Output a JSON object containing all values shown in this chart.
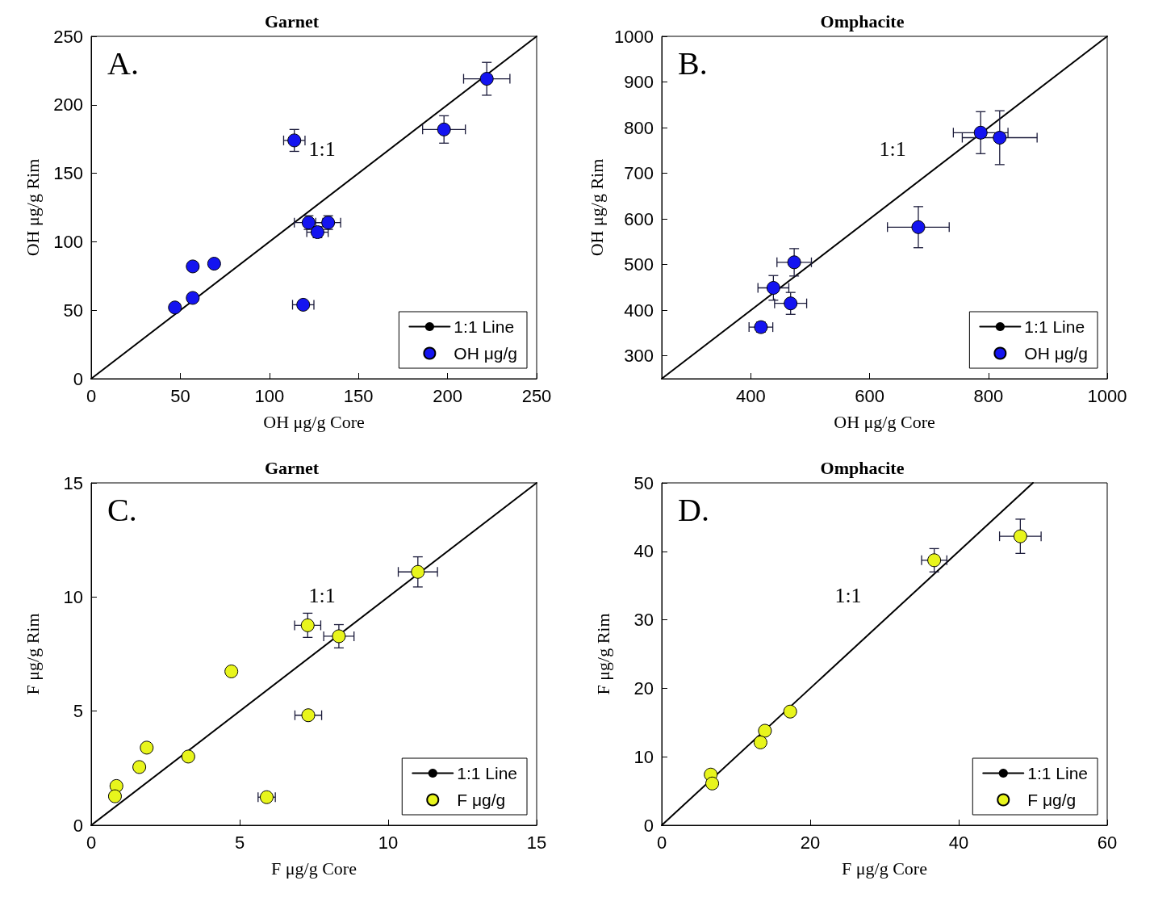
{
  "chart_data": [
    {
      "type": "scatter",
      "title": "Garnet",
      "xlabel": "OH μg/g Core",
      "ylabel": "OH μg/g Rim",
      "xlim": [
        0,
        250
      ],
      "ylim": [
        0,
        250
      ],
      "xticks": [
        0,
        50,
        100,
        150,
        200,
        250
      ],
      "yticks": [
        0,
        50,
        100,
        150,
        200,
        250
      ],
      "grid": false,
      "legend": "bottom right",
      "marker": "circle",
      "annotations": [
        "A.",
        "1:1"
      ],
      "series": [
        {
          "name": "1:1 Line",
          "type": "line",
          "color": "#000000",
          "marker": "none",
          "x": [
            0,
            250
          ],
          "values": [
            0,
            250
          ]
        },
        {
          "name": "OH μg/g",
          "color": "#1414f0",
          "x": [
            222,
            198,
            114,
            122,
            133,
            127,
            57,
            69,
            57,
            47,
            119
          ],
          "values": [
            219,
            182,
            174,
            114,
            114,
            107,
            82,
            84,
            59,
            52,
            54
          ],
          "xerrors": [
            13,
            12,
            6,
            8,
            7,
            6,
            null,
            null,
            null,
            null,
            6
          ],
          "errors": [
            12,
            10,
            8,
            5,
            5,
            4,
            null,
            null,
            null,
            null,
            null
          ]
        }
      ]
    },
    {
      "type": "scatter",
      "title": "Omphacite",
      "xlabel": "OH μg/g Core",
      "ylabel": "OH μg/g Rim",
      "xlim": [
        250,
        1000
      ],
      "ylim": [
        250,
        1000
      ],
      "xticks": [
        400,
        600,
        800,
        1000
      ],
      "yticks": [
        300,
        400,
        500,
        600,
        700,
        800,
        900,
        1000
      ],
      "grid": false,
      "legend": "bottom right",
      "marker": "circle",
      "annotations": [
        "B.",
        "1:1"
      ],
      "series": [
        {
          "name": "1:1 Line",
          "type": "line",
          "color": "#000000",
          "marker": "none",
          "x": [
            250,
            1000
          ],
          "values": [
            250,
            1000
          ]
        },
        {
          "name": "OH μg/g",
          "color": "#1414f0",
          "x": [
            787,
            819,
            682,
            473,
            438,
            467,
            417
          ],
          "values": [
            789,
            778,
            582,
            505,
            449,
            415,
            363
          ],
          "xerrors": [
            46,
            63,
            52,
            29,
            26,
            27,
            20
          ],
          "errors": [
            46,
            59,
            45,
            30,
            27,
            24,
            11
          ]
        }
      ]
    },
    {
      "type": "scatter",
      "title": "Garnet",
      "xlabel": "F μg/g Core",
      "ylabel": "F μg/g Rim",
      "xlim": [
        0,
        15
      ],
      "ylim": [
        0,
        15
      ],
      "xticks": [
        0,
        5,
        10,
        15
      ],
      "yticks": [
        0,
        5,
        10,
        15
      ],
      "grid": false,
      "legend": "bottom right",
      "marker": "circle",
      "annotations": [
        "C.",
        "1:1"
      ],
      "series": [
        {
          "name": "1:1 Line",
          "type": "line",
          "color": "#000000",
          "marker": "none",
          "x": [
            0,
            15
          ],
          "values": [
            0,
            15
          ]
        },
        {
          "name": "F μg/g",
          "color": "#e8f51c",
          "x": [
            11.0,
            7.29,
            8.34,
            4.72,
            7.31,
            3.27,
            1.87,
            1.62,
            0.85,
            0.8,
            5.91
          ],
          "values": [
            11.1,
            8.76,
            8.28,
            6.74,
            4.82,
            3.01,
            3.4,
            2.55,
            1.72,
            1.27,
            1.23
          ],
          "xerrors": [
            0.66,
            0.44,
            0.51,
            null,
            0.45,
            null,
            null,
            null,
            null,
            null,
            0.29
          ],
          "errors": [
            0.66,
            0.53,
            0.51,
            null,
            null,
            null,
            null,
            null,
            null,
            null,
            null
          ]
        }
      ]
    },
    {
      "type": "scatter",
      "title": "Omphacite",
      "xlabel": "F μg/g Core",
      "ylabel": "F μg/g Rim",
      "xlim": [
        0,
        60
      ],
      "ylim": [
        0,
        50
      ],
      "xticks": [
        0,
        20,
        40,
        60
      ],
      "yticks": [
        0,
        10,
        20,
        30,
        40,
        50
      ],
      "grid": false,
      "legend": "bottom right",
      "marker": "circle",
      "annotations": [
        "D.",
        "1:1"
      ],
      "series": [
        {
          "name": "1:1 Line",
          "type": "line",
          "color": "#000000",
          "marker": "none",
          "x": [
            0,
            50
          ],
          "values": [
            0,
            50
          ]
        },
        {
          "name": "F μg/g",
          "color": "#e8f51c",
          "x": [
            48.3,
            36.7,
            17.3,
            13.9,
            13.3,
            6.6,
            6.8
          ],
          "values": [
            42.2,
            38.7,
            16.6,
            13.8,
            12.1,
            7.4,
            6.1
          ],
          "xerrors": [
            2.8,
            1.7,
            null,
            null,
            null,
            null,
            null
          ],
          "errors": [
            2.5,
            1.7,
            null,
            null,
            null,
            null,
            null
          ]
        }
      ]
    }
  ]
}
